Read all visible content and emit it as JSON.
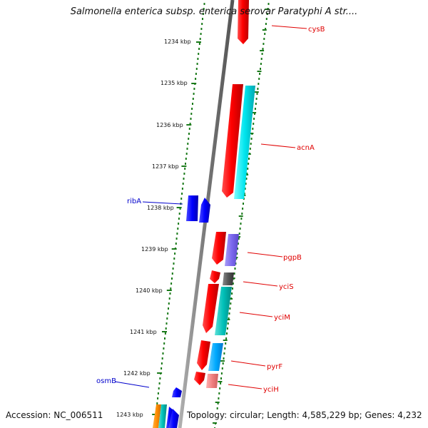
{
  "title": "Salmonella enterica subsp. enterica serovar Paratyphi A str....",
  "accession_label": "Accession: NC_006511",
  "summary_label": "Topology: circular; Length: 4,585,229 bp; Genes: 4,232",
  "colors": {
    "backbone": "#888888",
    "tick": "#1a7a1a",
    "feature_red": "#ff0000",
    "feature_cyan": "#00e5ee",
    "feature_teal": "#00c8c0",
    "feature_blue": "#0000ff",
    "feature_purple": "#7b68ee",
    "feature_gray": "#555555",
    "feature_pink": "#f08080",
    "feature_orange": "#ff8c00",
    "feature_skyblue": "#00aaff",
    "label_red": "#e00000",
    "label_blue": "#0000cc"
  },
  "kbp_ticks": [
    "1234 kbp",
    "1235 kbp",
    "1236 kbp",
    "1237 kbp",
    "1238 kbp",
    "1239 kbp",
    "1240 kbp",
    "1241 kbp",
    "1242 kbp",
    "1243 kbp"
  ],
  "gene_labels": [
    {
      "name": "cysB",
      "color": "label_red"
    },
    {
      "name": "acnA",
      "color": "label_red"
    },
    {
      "name": "ribA",
      "color": "label_blue"
    },
    {
      "name": "pgpB",
      "color": "label_red"
    },
    {
      "name": "yciS",
      "color": "label_red"
    },
    {
      "name": "yciM",
      "color": "label_red"
    },
    {
      "name": "pyrF",
      "color": "label_red"
    },
    {
      "name": "yciH",
      "color": "label_red"
    },
    {
      "name": "osmB",
      "color": "label_blue"
    }
  ]
}
